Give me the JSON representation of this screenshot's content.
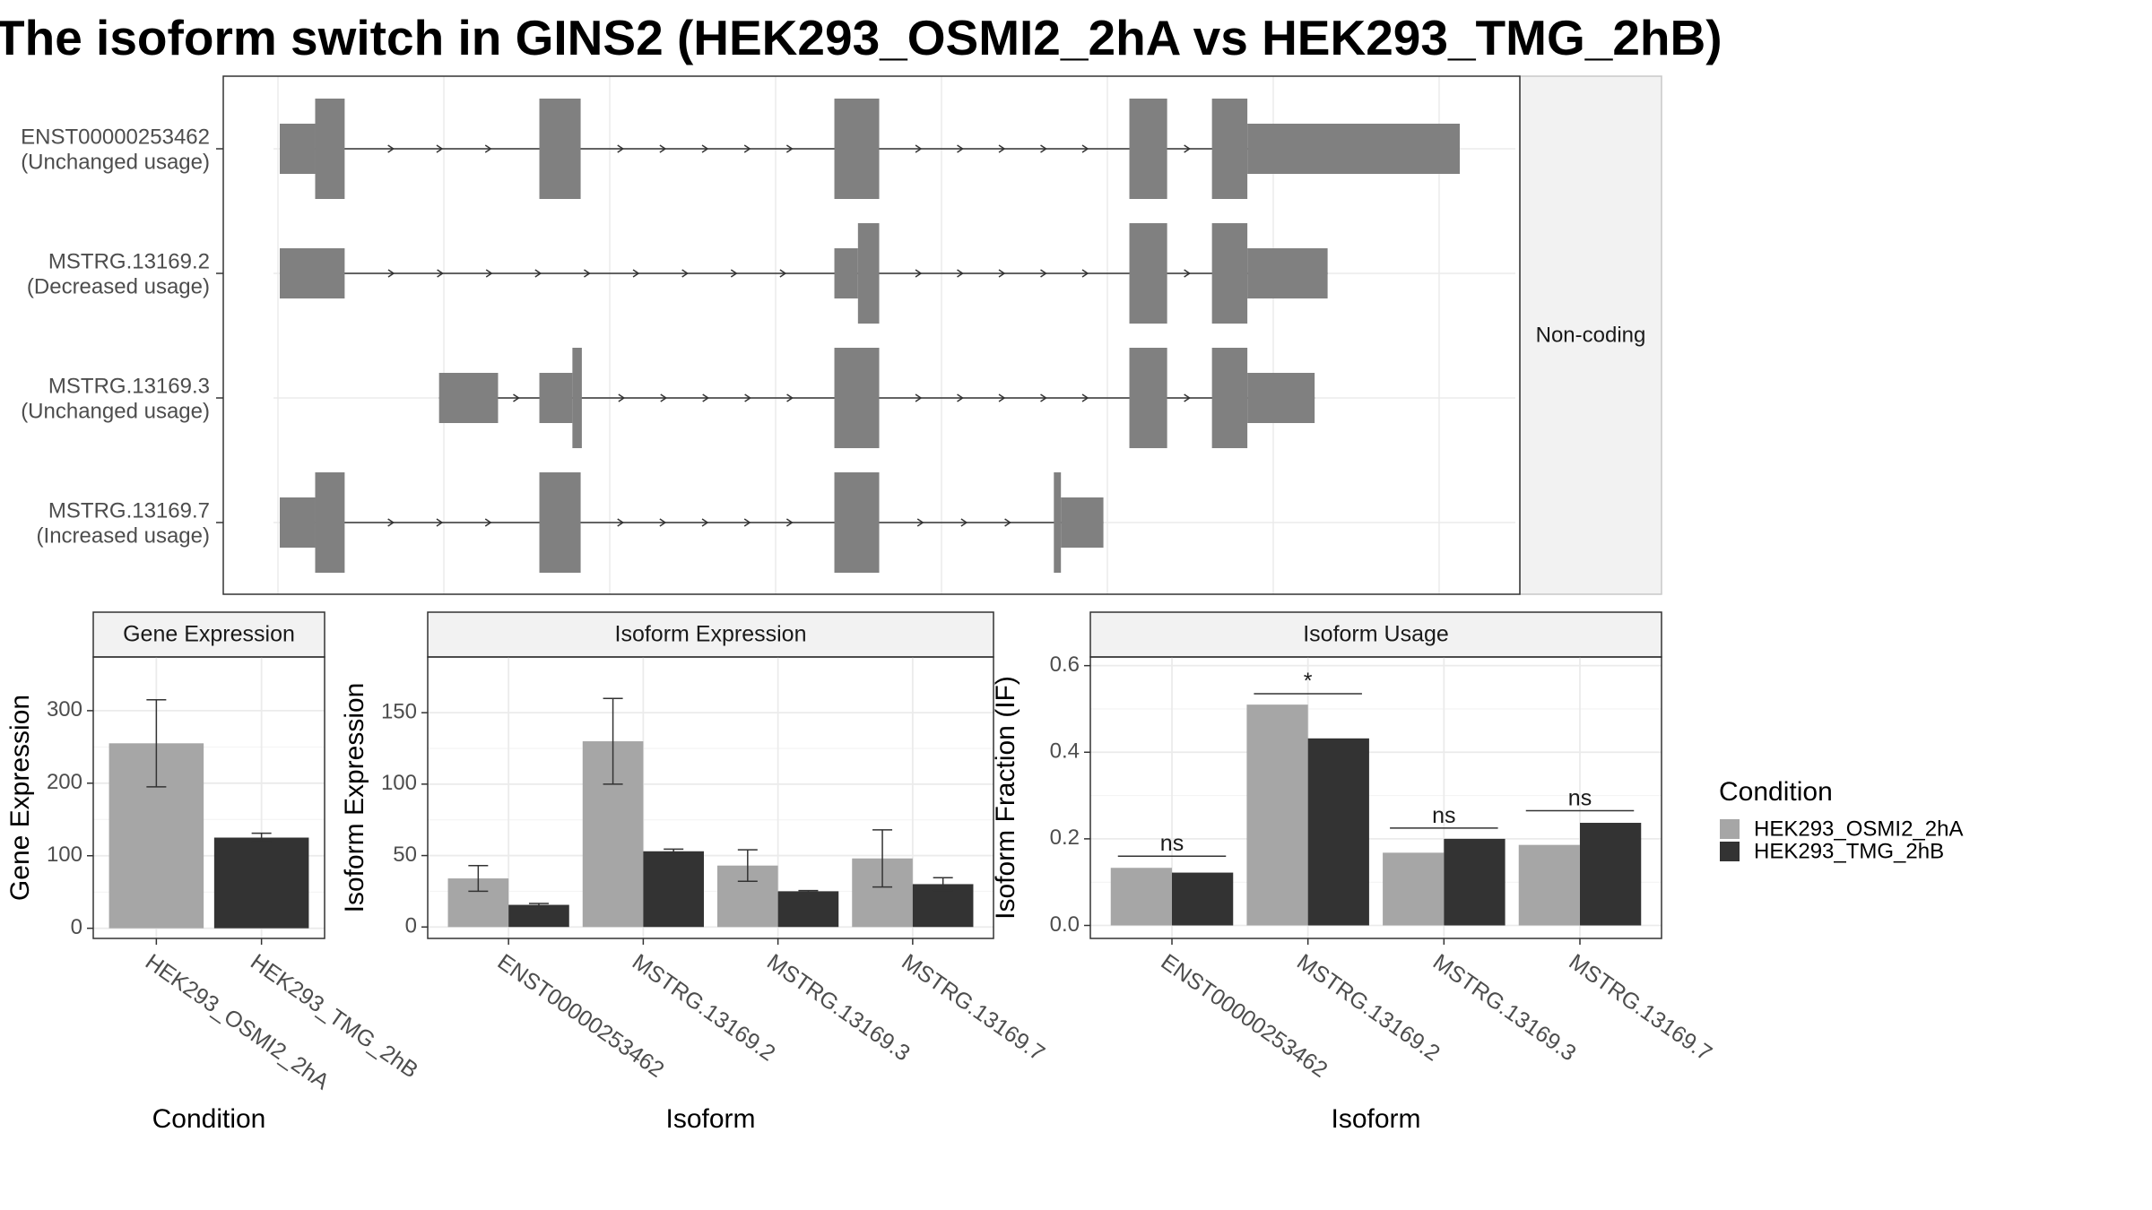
{
  "title": "The isoform switch in GINS2 (HEK293_OSMI2_2hA vs HEK293_TMG_2hB)",
  "colors": {
    "cond_a": "#a6a6a6",
    "cond_b": "#333333",
    "exon": "#808080",
    "grid": "#ebebeb",
    "strip": "#f2f2f2",
    "border": "#333333"
  },
  "chart_data": [
    {
      "type": "table",
      "panel": "isoform-structure",
      "strip_label": "Non-coding",
      "x_range": [
        0,
        100
      ],
      "transcripts": [
        {
          "id": "ENST00000253462",
          "usage": "(Unchanged usage)",
          "exons": [
            {
              "start": 0,
              "end": 3,
              "half": true
            },
            {
              "start": 3,
              "end": 5.5,
              "half": false
            },
            {
              "start": 22,
              "end": 25.5,
              "half": false
            },
            {
              "start": 47,
              "end": 50.8,
              "half": false
            },
            {
              "start": 72,
              "end": 75.2,
              "half": false
            },
            {
              "start": 79,
              "end": 82,
              "half": false
            },
            {
              "start": 82,
              "end": 100,
              "half": true
            }
          ]
        },
        {
          "id": "MSTRG.13169.2",
          "usage": "(Decreased usage)",
          "exons": [
            {
              "start": 0,
              "end": 5.5,
              "half": true
            },
            {
              "start": 47,
              "end": 49,
              "half": true
            },
            {
              "start": 49,
              "end": 50.8,
              "half": false
            },
            {
              "start": 72,
              "end": 75.2,
              "half": false
            },
            {
              "start": 79,
              "end": 82,
              "half": false
            },
            {
              "start": 82,
              "end": 88.8,
              "half": true
            }
          ]
        },
        {
          "id": "MSTRG.13169.3",
          "usage": "(Unchanged usage)",
          "exons": [
            {
              "start": 13.5,
              "end": 18.5,
              "half": true
            },
            {
              "start": 22,
              "end": 24.8,
              "half": true
            },
            {
              "start": 24.8,
              "end": 25.6,
              "half": false
            },
            {
              "start": 47,
              "end": 50.8,
              "half": false
            },
            {
              "start": 72,
              "end": 75.2,
              "half": false
            },
            {
              "start": 79,
              "end": 82,
              "half": false
            },
            {
              "start": 82,
              "end": 87.7,
              "half": true
            }
          ]
        },
        {
          "id": "MSTRG.13169.7",
          "usage": "(Increased usage)",
          "exons": [
            {
              "start": 0,
              "end": 3,
              "half": true
            },
            {
              "start": 3,
              "end": 5.5,
              "half": false
            },
            {
              "start": 22,
              "end": 25.5,
              "half": false
            },
            {
              "start": 47,
              "end": 50.8,
              "half": false
            },
            {
              "start": 65.6,
              "end": 66.2,
              "half": false
            },
            {
              "start": 66.2,
              "end": 69.8,
              "half": true
            }
          ]
        }
      ]
    },
    {
      "type": "bar",
      "panel": "gene-expression",
      "title": "Gene Expression",
      "xlabel": "Condition",
      "ylabel": "Gene Expression",
      "ylim": [
        -14,
        374
      ],
      "yticks": [
        0,
        100,
        200,
        300
      ],
      "categories": [
        "HEK293_OSMI2_2hA",
        "HEK293_TMG_2hB"
      ],
      "series": [
        {
          "name": "HEK293_OSMI2_2hA",
          "values": [
            255,
            null
          ],
          "err": [
            60,
            null
          ]
        },
        {
          "name": "HEK293_TMG_2hB",
          "values": [
            null,
            125
          ],
          "err": [
            null,
            6
          ]
        }
      ]
    },
    {
      "type": "bar",
      "panel": "isoform-expression",
      "title": "Isoform Expression",
      "xlabel": "Isoform",
      "ylabel": "Isoform Expression",
      "ylim": [
        -8,
        189
      ],
      "yticks": [
        0,
        50,
        100,
        150
      ],
      "categories": [
        "ENST00000253462",
        "MSTRG.13169.2",
        "MSTRG.13169.3",
        "MSTRG.13169.7"
      ],
      "series": [
        {
          "name": "HEK293_OSMI2_2hA",
          "values": [
            34,
            130,
            43,
            48
          ],
          "err": [
            9,
            30,
            11,
            20
          ]
        },
        {
          "name": "HEK293_TMG_2hB",
          "values": [
            15.5,
            53,
            25,
            30
          ],
          "err": [
            1,
            1.5,
            0.5,
            4.5
          ]
        }
      ]
    },
    {
      "type": "bar",
      "panel": "isoform-usage",
      "title": "Isoform Usage",
      "xlabel": "Isoform",
      "ylabel": "Isoform Fraction (IF)",
      "ylim": [
        -0.03,
        0.62
      ],
      "yticks": [
        0,
        0.2,
        0.4,
        0.6
      ],
      "ytick_labels": [
        "0.0",
        "0.2",
        "0.4",
        "0.6"
      ],
      "categories": [
        "ENST00000253462",
        "MSTRG.13169.2",
        "MSTRG.13169.3",
        "MSTRG.13169.7"
      ],
      "series": [
        {
          "name": "HEK293_OSMI2_2hA",
          "values": [
            0.133,
            0.51,
            0.168,
            0.186
          ]
        },
        {
          "name": "HEK293_TMG_2hB",
          "values": [
            0.122,
            0.432,
            0.2,
            0.237
          ]
        }
      ],
      "significance": [
        "ns",
        "*",
        "ns",
        "ns"
      ],
      "significance_level": [
        0.16,
        0.535,
        0.225,
        0.265
      ]
    }
  ],
  "legend": {
    "title": "Condition",
    "entries": [
      "HEK293_OSMI2_2hA",
      "HEK293_TMG_2hB"
    ],
    "position": "right"
  }
}
